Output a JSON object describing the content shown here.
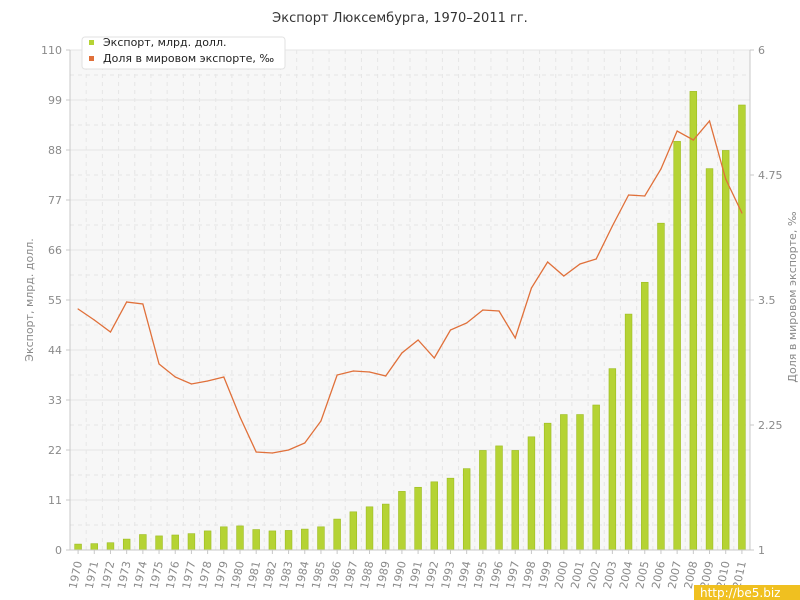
{
  "chart_data": {
    "type": "bar+line",
    "title": "Экспорт Люксембурга, 1970–2011 гг.",
    "ylabel_left": "Экспорт, млрд. долл.",
    "ylabel_right": "Доля в мировом экспорте, ‰",
    "ylim_left": [
      0,
      110
    ],
    "ylim_right": [
      1,
      6
    ],
    "yticks_left": [
      "0",
      "11",
      "22",
      "33",
      "44",
      "55",
      "66",
      "77",
      "88",
      "99",
      "110"
    ],
    "yticks_right": [
      "1",
      "2.25",
      "3.5",
      "4.75",
      "6"
    ],
    "grid": true,
    "legend_position": "top-left",
    "categories": [
      "1970",
      "1971",
      "1972",
      "1973",
      "1974",
      "1975",
      "1976",
      "1977",
      "1978",
      "1979",
      "1980",
      "1981",
      "1982",
      "1983",
      "1984",
      "1985",
      "1986",
      "1987",
      "1988",
      "1989",
      "1990",
      "1991",
      "1992",
      "1993",
      "1994",
      "1995",
      "1996",
      "1997",
      "1998",
      "1999",
      "2000",
      "2001",
      "2002",
      "2003",
      "2004",
      "2005",
      "2006",
      "2007",
      "2008",
      "2009",
      "2010",
      "2011"
    ],
    "series": [
      {
        "name": "Экспорт, млрд. долл.",
        "type": "bar",
        "axis": "left",
        "color": "#b5d334",
        "values": [
          1.3,
          1.4,
          1.6,
          2.4,
          3.4,
          3.1,
          3.3,
          3.6,
          4.2,
          5.1,
          5.3,
          4.5,
          4.2,
          4.3,
          4.6,
          5.1,
          6.8,
          8.4,
          9.5,
          10.1,
          12.9,
          13.8,
          15.0,
          15.8,
          17.9,
          21.9,
          22.9,
          21.9,
          24.9,
          27.9,
          29.8,
          29.8,
          31.9,
          39.9,
          51.9,
          58.9,
          71.9,
          89.9,
          100.9,
          83.9,
          87.9,
          97.9
        ]
      },
      {
        "name": "Доля в мировом экспорте, ‰",
        "type": "line",
        "axis": "right",
        "color": "#e0703a",
        "values": [
          3.41,
          3.3,
          3.18,
          3.48,
          3.46,
          2.86,
          2.73,
          2.66,
          2.69,
          2.73,
          2.33,
          1.98,
          1.97,
          2.0,
          2.07,
          2.29,
          2.75,
          2.79,
          2.78,
          2.74,
          2.97,
          3.1,
          2.92,
          3.2,
          3.27,
          3.4,
          3.39,
          3.12,
          3.62,
          3.88,
          3.74,
          3.86,
          3.91,
          4.24,
          4.55,
          4.54,
          4.81,
          5.19,
          5.1,
          5.29,
          4.71,
          4.37
        ]
      }
    ],
    "watermark": "http://be5.biz"
  },
  "colors": {
    "bar": "#b5d334",
    "bar_stroke": "#9cbc1f",
    "line": "#e0703a",
    "grid": "#e6e6e6",
    "axis": "#c8c8c8",
    "plot_bg": "#f7f7f7",
    "watermark_bg": "#f0c020"
  }
}
